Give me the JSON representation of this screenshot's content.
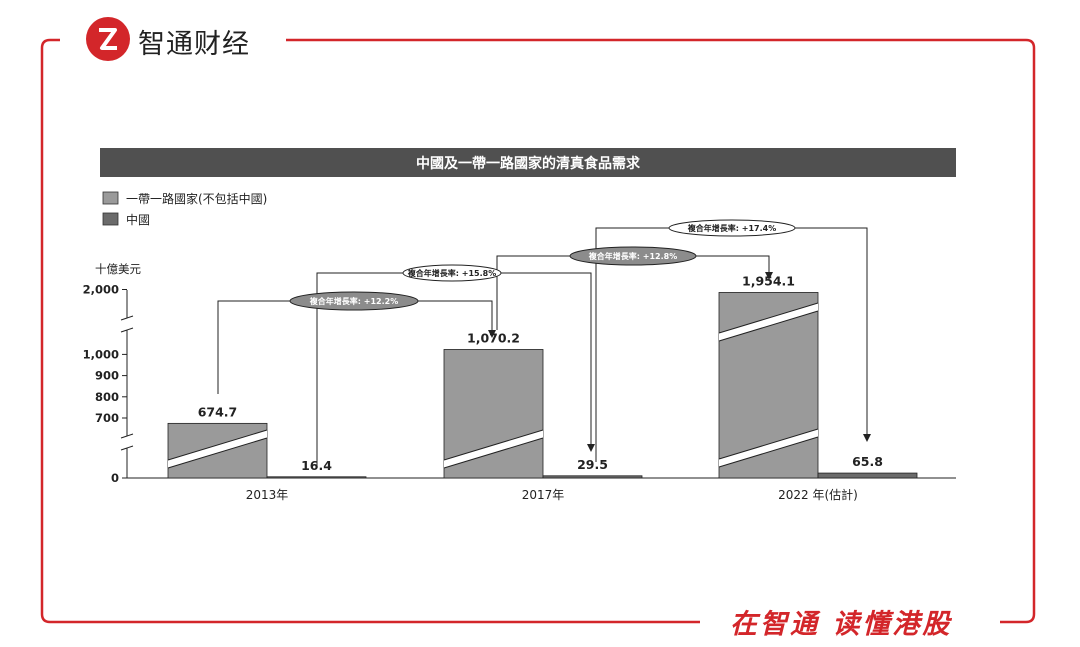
{
  "brand": {
    "name": "智通财经",
    "slogan": "在智通 读懂港股",
    "accent_color": "#d3262a"
  },
  "chart_data": {
    "type": "bar",
    "title": "中國及一帶一路國家的清真食品需求",
    "ylabel": "十億美元",
    "categories": [
      "2013年",
      "2017年",
      "2022 年(估計)"
    ],
    "series": [
      {
        "name": "一帶一路國家(不包括中國)",
        "color": "#9a9a9a",
        "values": [
          674.7,
          1070.2,
          1954.1
        ],
        "value_labels": [
          "674.7",
          "1,070.2",
          "1,954.1"
        ]
      },
      {
        "name": "中國",
        "color": "#6b6b6b",
        "values": [
          16.4,
          29.5,
          65.8
        ],
        "value_labels": [
          "16.4",
          "29.5",
          "65.8"
        ]
      }
    ],
    "y_ticks": [
      "0",
      "700",
      "800",
      "900",
      "1,000",
      "2,000"
    ],
    "axis_breaks": true,
    "grid": false,
    "legend_position": "top-left",
    "cagr_annotations": [
      {
        "label": "複合年增長率: +12.2%",
        "series": "一帶一路國家(不包括中國)",
        "from": "2013年",
        "to": "2017年",
        "style": "filled"
      },
      {
        "label": "複合年增長率: +15.8%",
        "series": "中國",
        "from": "2013年",
        "to": "2017年",
        "style": "outline"
      },
      {
        "label": "複合年增長率: +12.8%",
        "series": "一帶一路國家(不包括中國)",
        "from": "2017年",
        "to": "2022 年(估計)",
        "style": "filled"
      },
      {
        "label": "複合年增長率: +17.4%",
        "series": "中國",
        "from": "2017年",
        "to": "2022 年(估計)",
        "style": "outline"
      }
    ]
  }
}
